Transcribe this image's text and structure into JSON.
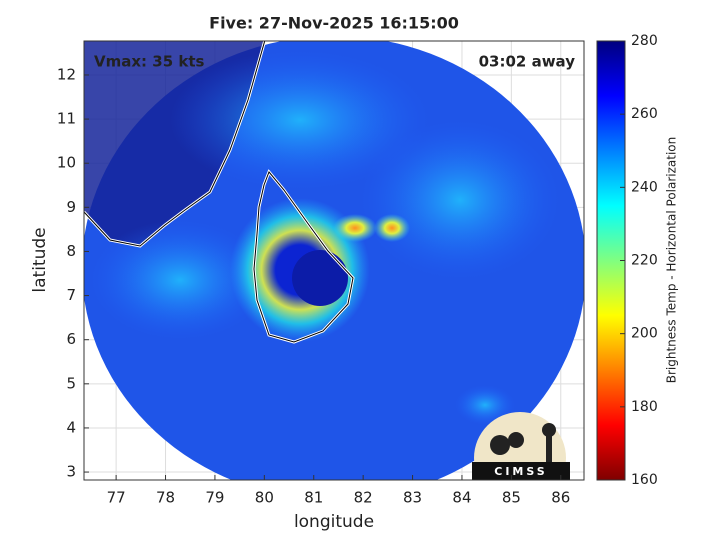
{
  "chart_data": {
    "type": "map",
    "title": "Five: 27-Nov-2025 16:15:00",
    "xlabel": "longitude",
    "ylabel": "latitude",
    "annotations": [
      "Vmax: 35 kts",
      "03:02 away"
    ],
    "logo": "CIMSS",
    "xlim": [
      76.35,
      86.47
    ],
    "ylim": [
      2.82,
      12.77
    ],
    "xticks": [
      77,
      78,
      79,
      80,
      81,
      82,
      83,
      84,
      85,
      86
    ],
    "yticks": [
      3,
      4,
      5,
      6,
      7,
      8,
      9,
      10,
      11,
      12
    ],
    "grid": true,
    "colorbar": {
      "label": "Brightness Temp - Horizontal Polarization",
      "lim": [
        160,
        280
      ],
      "ticks": [
        160,
        180,
        200,
        220,
        240,
        260,
        280
      ],
      "colors": [
        "#7f0000",
        "#ff0000",
        "#ff8000",
        "#ffff00",
        "#80ff80",
        "#00ffff",
        "#0080ff",
        "#0000ff",
        "#00007f"
      ]
    }
  }
}
